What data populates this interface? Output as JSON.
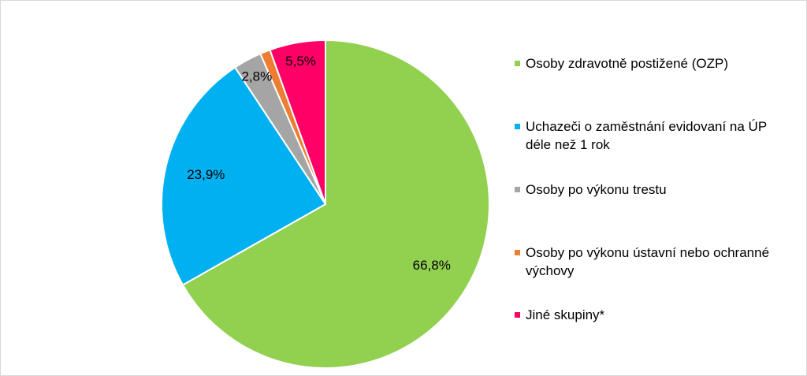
{
  "chart_data": {
    "type": "pie",
    "categories": [
      "Osoby zdravotně postižené (OZP)",
      "Uchazeči o zaměstnání evidovaní na ÚP déle než 1 rok",
      "Osoby po výkonu trestu",
      "Osoby po výkonu ústavní nebo ochranné výchovy",
      "Jiné skupiny*"
    ],
    "values": [
      66.8,
      23.9,
      2.8,
      1.0,
      5.5
    ],
    "value_labels": [
      "66,8%",
      "23,9%",
      "2,8%",
      null,
      "5,5%"
    ],
    "colors": [
      "#92d050",
      "#00b0f0",
      "#a5a5a5",
      "#ed7d31",
      "#ff0066"
    ],
    "legend": "right"
  }
}
